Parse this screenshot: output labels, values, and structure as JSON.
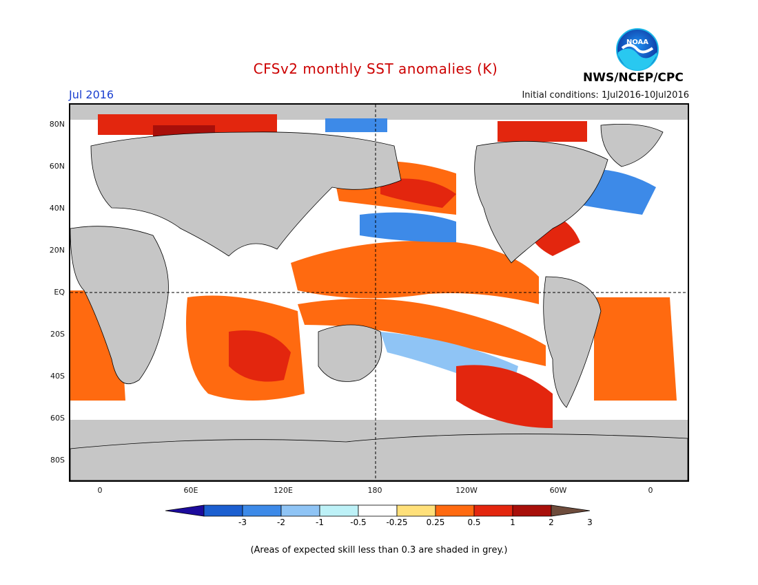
{
  "title": "CFSv2 monthly SST anomalies (K)",
  "month": "Jul 2016",
  "initial_conditions": "Initial conditions: 1Jul2016-10Jul2016",
  "agency": "NWS/NCEP/CPC",
  "logo_text": "NOAA",
  "colors": {
    "title": "#cc0000",
    "month": "#1a3fd0",
    "land": "#c6c6c6",
    "grey_skill": "#c6c6c6",
    "ocean_neutral": "#ffffff"
  },
  "lat_labels": [
    "80N",
    "60N",
    "40N",
    "20N",
    "EQ",
    "20S",
    "40S",
    "60S",
    "80S"
  ],
  "lon_labels": [
    "0",
    "60E",
    "120E",
    "180",
    "120W",
    "60W",
    "0"
  ],
  "colorbar": {
    "labels": [
      "-3",
      "-2",
      "-1",
      "-0.5",
      "-0.25",
      "0.25",
      "0.5",
      "1",
      "2",
      "3"
    ],
    "colors": [
      "#1c0b9c",
      "#1c5fd0",
      "#3d8ae8",
      "#8fc4f5",
      "#bdf1f7",
      "#ffffff",
      "#ffe07a",
      "#ff6a10",
      "#e3260e",
      "#a80f0a",
      "#6e4c3c"
    ]
  },
  "note": "(Areas of expected skill less than 0.3 are shaded in grey.)"
}
